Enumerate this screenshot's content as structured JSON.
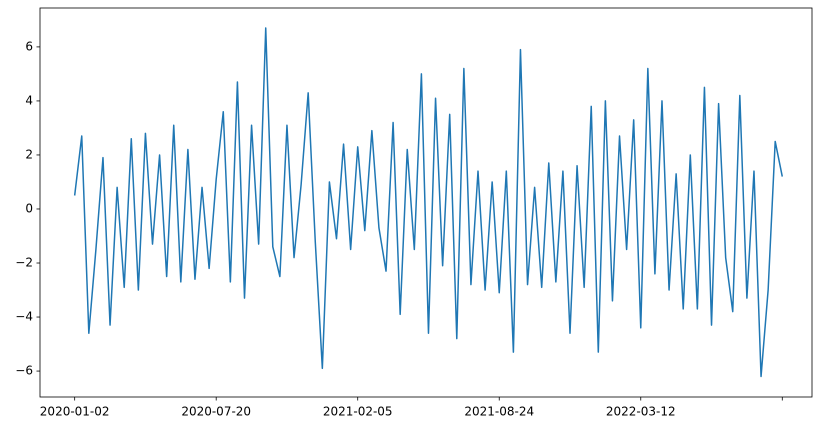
{
  "chart_data": {
    "type": "line",
    "color": "#1f77b4",
    "x": [
      "2020-01-02",
      "2020-01-12",
      "2020-01-22",
      "2020-02-01",
      "2020-02-11",
      "2020-02-21",
      "2020-03-02",
      "2020-03-12",
      "2020-03-22",
      "2020-04-01",
      "2020-04-11",
      "2020-04-21",
      "2020-05-01",
      "2020-05-11",
      "2020-05-21",
      "2020-05-31",
      "2020-06-10",
      "2020-06-20",
      "2020-06-30",
      "2020-07-10",
      "2020-07-20",
      "2020-07-30",
      "2020-08-09",
      "2020-08-19",
      "2020-08-29",
      "2020-09-08",
      "2020-09-18",
      "2020-09-28",
      "2020-10-08",
      "2020-10-18",
      "2020-10-28",
      "2020-11-07",
      "2020-11-17",
      "2020-11-27",
      "2020-12-07",
      "2020-12-17",
      "2020-12-27",
      "2021-01-06",
      "2021-01-16",
      "2021-01-26",
      "2021-02-05",
      "2021-02-15",
      "2021-02-25",
      "2021-03-07",
      "2021-03-17",
      "2021-03-27",
      "2021-04-06",
      "2021-04-16",
      "2021-04-26",
      "2021-05-06",
      "2021-05-16",
      "2021-05-26",
      "2021-06-05",
      "2021-06-15",
      "2021-06-25",
      "2021-07-05",
      "2021-07-15",
      "2021-07-25",
      "2021-08-04",
      "2021-08-14",
      "2021-08-24",
      "2021-09-03",
      "2021-09-13",
      "2021-09-23",
      "2021-10-03",
      "2021-10-13",
      "2021-10-23",
      "2021-11-02",
      "2021-11-12",
      "2021-11-22",
      "2021-12-02",
      "2021-12-12",
      "2021-12-22",
      "2022-01-01",
      "2022-01-11",
      "2022-01-21",
      "2022-01-31",
      "2022-02-10",
      "2022-02-20",
      "2022-03-02",
      "2022-03-12",
      "2022-03-22",
      "2022-04-01",
      "2022-04-11",
      "2022-04-21",
      "2022-05-01",
      "2022-05-11",
      "2022-05-21",
      "2022-05-31",
      "2022-06-10",
      "2022-06-20",
      "2022-06-30",
      "2022-07-10",
      "2022-07-20",
      "2022-07-30",
      "2022-08-09",
      "2022-08-19",
      "2022-08-29",
      "2022-09-08",
      "2022-09-18",
      "2022-09-28"
    ],
    "values": [
      0.5,
      2.7,
      -4.6,
      -1.5,
      1.9,
      -4.3,
      0.8,
      -2.9,
      2.6,
      -3.0,
      2.8,
      -1.3,
      2.0,
      -2.5,
      3.1,
      -2.7,
      2.2,
      -2.6,
      0.8,
      -2.2,
      1.1,
      3.6,
      -2.7,
      4.7,
      -3.3,
      3.1,
      -1.3,
      6.7,
      -1.4,
      -2.5,
      3.1,
      -1.8,
      0.9,
      4.3,
      -1.2,
      -5.9,
      1.0,
      -1.1,
      2.4,
      -1.5,
      2.3,
      -0.8,
      2.9,
      -0.7,
      -2.3,
      3.2,
      -3.9,
      2.2,
      -1.5,
      5.0,
      -4.6,
      4.1,
      -2.1,
      3.5,
      -4.8,
      5.2,
      -2.8,
      1.4,
      -3.0,
      1.0,
      -3.1,
      1.4,
      -5.3,
      5.9,
      -2.8,
      0.8,
      -2.9,
      1.7,
      -2.7,
      1.4,
      -4.6,
      1.6,
      -2.9,
      3.8,
      -5.3,
      4.0,
      -3.4,
      2.7,
      -1.5,
      3.3,
      -4.4,
      5.2,
      -2.4,
      4.0,
      -3.0,
      1.3,
      -3.7,
      2.0,
      -3.7,
      4.5,
      -4.3,
      3.9,
      -1.8,
      -3.8,
      4.2,
      -3.3,
      1.4,
      -6.2,
      -3.0,
      2.5,
      1.2
    ],
    "xlim": [
      "2019-11-14",
      "2022-11-09"
    ],
    "xticks": [
      "2020-01-02",
      "2020-07-20",
      "2021-02-05",
      "2021-08-24",
      "2022-03-12",
      {
        "value": "2022-09-28",
        "label": null
      }
    ],
    "ylim": [
      -6.96,
      7.44
    ],
    "yticks": [
      {
        "value": -6,
        "label": "−6"
      },
      {
        "value": -4,
        "label": "−4"
      },
      {
        "value": -2,
        "label": "−2"
      },
      0,
      2,
      4,
      6
    ]
  }
}
